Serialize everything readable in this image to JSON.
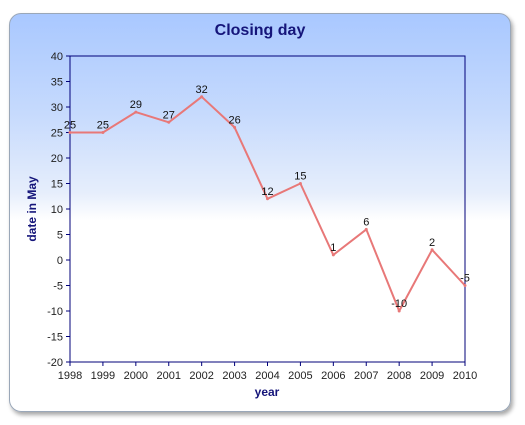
{
  "chart_data": {
    "type": "line",
    "title": "Closing day",
    "xlabel": "year",
    "ylabel": "date in May",
    "x": [
      "1998",
      "1999",
      "2000",
      "2001",
      "2002",
      "2003",
      "2004",
      "2005",
      "2006",
      "2007",
      "2008",
      "2009",
      "2010"
    ],
    "series": [
      {
        "values": [
          25,
          25,
          29,
          27,
          32,
          26,
          12,
          15,
          1,
          6,
          -10,
          2,
          -5
        ],
        "color": "#e87878"
      }
    ],
    "ylim": [
      -20,
      40
    ],
    "yticks": [
      40,
      35,
      30,
      25,
      20,
      15,
      10,
      5,
      0,
      -5,
      -10,
      -15,
      -20
    ],
    "grid": false,
    "legend": "none",
    "colors": {
      "title": "#15157a",
      "axis": "#00007a",
      "line": "#e87878"
    }
  }
}
